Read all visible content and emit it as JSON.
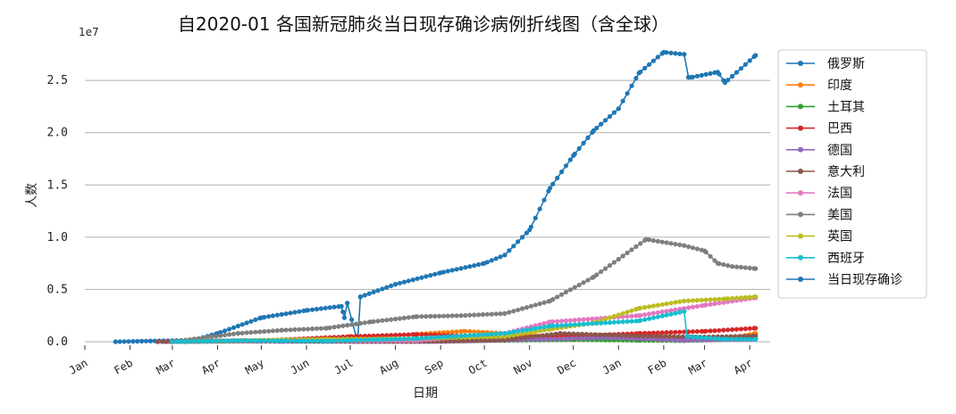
{
  "chart_data": {
    "type": "line",
    "title": "自2020-01 各国新冠肺炎当日现存确诊病例折线图（含全球）",
    "xlabel": "日期",
    "ylabel": "人数",
    "y_scale_note": "1e7",
    "ylim": [
      0,
      28000000
    ],
    "y_ticks": [
      0,
      5000000,
      10000000,
      15000000,
      20000000,
      25000000
    ],
    "y_tick_labels": [
      "0.0",
      "0.5",
      "1.0",
      "1.5",
      "2.0",
      "2.5"
    ],
    "x_range": [
      "2020-01-01",
      "2021-04-15"
    ],
    "x_ticks": [
      "2020-01-01",
      "2020-02-01",
      "2020-03-01",
      "2020-04-01",
      "2020-05-01",
      "2020-06-01",
      "2020-07-01",
      "2020-08-01",
      "2020-09-01",
      "2020-10-01",
      "2020-11-01",
      "2020-12-01",
      "2021-01-01",
      "2021-02-01",
      "2021-03-01",
      "2021-04-01"
    ],
    "x_tick_labels": [
      "Jan",
      "Feb",
      "Mar",
      "Apr",
      "May",
      "Jun",
      "Jul",
      "Aug",
      "Sep",
      "Oct",
      "Nov",
      "Dec",
      "Jan",
      "Feb",
      "Mar",
      "Apr"
    ],
    "grid": "horizontal",
    "legend_position": "right",
    "series": [
      {
        "name": "俄罗斯",
        "color": "#1f77b4",
        "dates": [
          "2020-03-01",
          "2020-04-15",
          "2020-05-15",
          "2020-07-01",
          "2020-09-01",
          "2020-11-01",
          "2020-12-15",
          "2021-02-15",
          "2021-04-05"
        ],
        "values": [
          0,
          50000,
          180000,
          180000,
          180000,
          400000,
          500000,
          300000,
          270000
        ]
      },
      {
        "name": "印度",
        "color": "#ff7f0e",
        "dates": [
          "2020-03-01",
          "2020-05-01",
          "2020-06-15",
          "2020-08-01",
          "2020-09-17",
          "2020-10-15",
          "2020-11-15",
          "2020-12-31",
          "2021-02-15",
          "2021-03-15",
          "2021-04-05"
        ],
        "values": [
          0,
          50000,
          200000,
          600000,
          1010000,
          800000,
          450000,
          250000,
          140000,
          230000,
          800000
        ]
      },
      {
        "name": "土耳其",
        "color": "#2ca02c",
        "dates": [
          "2020-03-10",
          "2020-04-25",
          "2020-06-01",
          "2020-09-01",
          "2020-12-01",
          "2021-01-15",
          "2021-02-15",
          "2021-04-05"
        ],
        "values": [
          0,
          100000,
          50000,
          50000,
          200000,
          130000,
          100000,
          300000
        ]
      },
      {
        "name": "巴西",
        "color": "#d62728",
        "dates": [
          "2020-03-10",
          "2020-05-01",
          "2020-07-01",
          "2020-08-15",
          "2020-10-01",
          "2020-11-15",
          "2021-01-15",
          "2021-03-01",
          "2021-04-05"
        ],
        "values": [
          0,
          100000,
          500000,
          700000,
          500000,
          450000,
          800000,
          1000000,
          1300000
        ]
      },
      {
        "name": "德国",
        "color": "#9467bd",
        "dates": [
          "2020-02-25",
          "2020-04-05",
          "2020-05-15",
          "2020-09-01",
          "2020-11-15",
          "2020-12-25",
          "2021-02-15",
          "2021-04-05"
        ],
        "values": [
          0,
          70000,
          15000,
          10000,
          250000,
          380000,
          130000,
          240000
        ]
      },
      {
        "name": "意大利",
        "color": "#8c564b",
        "dates": [
          "2020-02-20",
          "2020-04-20",
          "2020-06-15",
          "2020-08-15",
          "2020-10-15",
          "2020-11-22",
          "2021-01-15",
          "2021-03-01",
          "2021-04-05"
        ],
        "values": [
          0,
          108000,
          25000,
          15000,
          150000,
          800000,
          550000,
          450000,
          560000
        ]
      },
      {
        "name": "法国",
        "color": "#e377c2",
        "dates": [
          "2020-03-01",
          "2020-04-15",
          "2020-06-15",
          "2020-08-15",
          "2020-10-15",
          "2020-11-15",
          "2021-01-15",
          "2021-03-01",
          "2021-04-05"
        ],
        "values": [
          0,
          100000,
          70000,
          100000,
          800000,
          1900000,
          2500000,
          3500000,
          4200000
        ]
      },
      {
        "name": "美国",
        "color": "#7f7f7f",
        "dates": [
          "2020-03-01",
          "2020-04-15",
          "2020-05-15",
          "2020-06-15",
          "2020-07-15",
          "2020-08-15",
          "2020-09-15",
          "2020-10-15",
          "2020-11-15",
          "2020-12-15",
          "2021-01-20",
          "2021-02-15",
          "2021-03-01",
          "2021-03-10",
          "2021-03-20",
          "2021-04-05"
        ],
        "values": [
          0,
          800000,
          1100000,
          1300000,
          1900000,
          2400000,
          2500000,
          2700000,
          3900000,
          6200000,
          9800000,
          9200000,
          8700000,
          7500000,
          7200000,
          7000000
        ]
      },
      {
        "name": "英国",
        "color": "#bcbd22",
        "dates": [
          "2020-03-01",
          "2020-04-15",
          "2020-06-15",
          "2020-08-15",
          "2020-10-15",
          "2020-11-15",
          "2020-12-15",
          "2021-01-15",
          "2021-02-15",
          "2021-03-15",
          "2021-04-05"
        ],
        "values": [
          0,
          100000,
          250000,
          300000,
          500000,
          1200000,
          1800000,
          3200000,
          3900000,
          4100000,
          4300000
        ]
      },
      {
        "name": "西班牙",
        "color": "#17becf",
        "dates": [
          "2020-03-01",
          "2020-04-15",
          "2020-06-15",
          "2020-08-15",
          "2020-10-15",
          "2020-11-15",
          "2021-01-15",
          "2021-02-15",
          "2021-02-17",
          "2021-03-15",
          "2021-04-05"
        ],
        "values": [
          0,
          100000,
          70000,
          300000,
          800000,
          1500000,
          2000000,
          2900000,
          500000,
          250000,
          230000
        ]
      },
      {
        "name": "当日现存确诊",
        "color": "#1f77b4",
        "dates": [
          "2020-01-22",
          "2020-02-15",
          "2020-03-15",
          "2020-04-01",
          "2020-05-01",
          "2020-06-01",
          "2020-06-25",
          "2020-06-27",
          "2020-06-29",
          "2020-07-06",
          "2020-07-08",
          "2020-08-01",
          "2020-09-01",
          "2020-10-01",
          "2020-10-15",
          "2020-11-01",
          "2020-11-15",
          "2020-12-01",
          "2020-12-15",
          "2021-01-01",
          "2021-01-15",
          "2021-02-01",
          "2021-02-15",
          "2021-02-18",
          "2021-02-20",
          "2021-03-10",
          "2021-03-15",
          "2021-03-20",
          "2021-04-05"
        ],
        "values": [
          0,
          70000,
          150000,
          800000,
          2300000,
          3000000,
          3400000,
          2300000,
          3700000,
          0,
          4300000,
          5500000,
          6600000,
          7500000,
          8300000,
          10700000,
          14700000,
          17800000,
          20200000,
          22300000,
          25700000,
          27700000,
          27500000,
          25300000,
          25300000,
          25800000,
          24800000,
          25400000,
          27400000
        ]
      }
    ]
  }
}
